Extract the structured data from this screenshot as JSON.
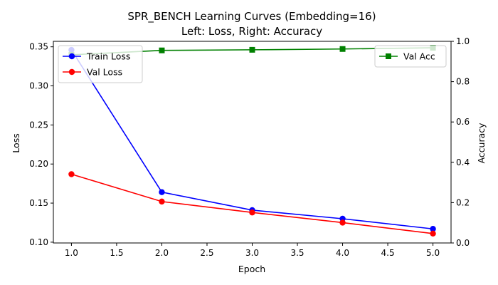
{
  "chart_data": {
    "type": "line",
    "title": "SPR_BENCH Learning Curves (Embedding=16)",
    "subtitle": "Left: Loss, Right: Accuracy",
    "xlabel": "Epoch",
    "ylabel_left": "Loss",
    "ylabel_right": "Accuracy",
    "x": [
      1,
      2,
      3,
      4,
      5
    ],
    "xlim": [
      0.8,
      5.2
    ],
    "ylim_left": [
      0.099,
      0.357
    ],
    "ylim_right": [
      0.0,
      1.0
    ],
    "xticks": [
      "1.0",
      "1.5",
      "2.0",
      "2.5",
      "3.0",
      "3.5",
      "4.0",
      "4.5",
      "5.0"
    ],
    "yticks_left": [
      "0.10",
      "0.15",
      "0.20",
      "0.25",
      "0.30",
      "0.35"
    ],
    "yticks_right": [
      "0.0",
      "0.2",
      "0.4",
      "0.6",
      "0.8",
      "1.0"
    ],
    "grid": false,
    "series": [
      {
        "name": "Train Loss",
        "axis": "left",
        "color": "#0000ff",
        "marker": "circle",
        "values": [
          0.346,
          0.164,
          0.141,
          0.13,
          0.117
        ]
      },
      {
        "name": "Val Loss",
        "axis": "left",
        "color": "#ff0000",
        "marker": "circle",
        "values": [
          0.187,
          0.152,
          0.138,
          0.125,
          0.111
        ]
      },
      {
        "name": "Val Acc",
        "axis": "right",
        "color": "#008000",
        "marker": "square",
        "values": [
          0.933,
          0.955,
          0.958,
          0.962,
          0.968
        ]
      }
    ],
    "legend_left_placement": "top-left",
    "legend_right_placement": "top-right"
  }
}
